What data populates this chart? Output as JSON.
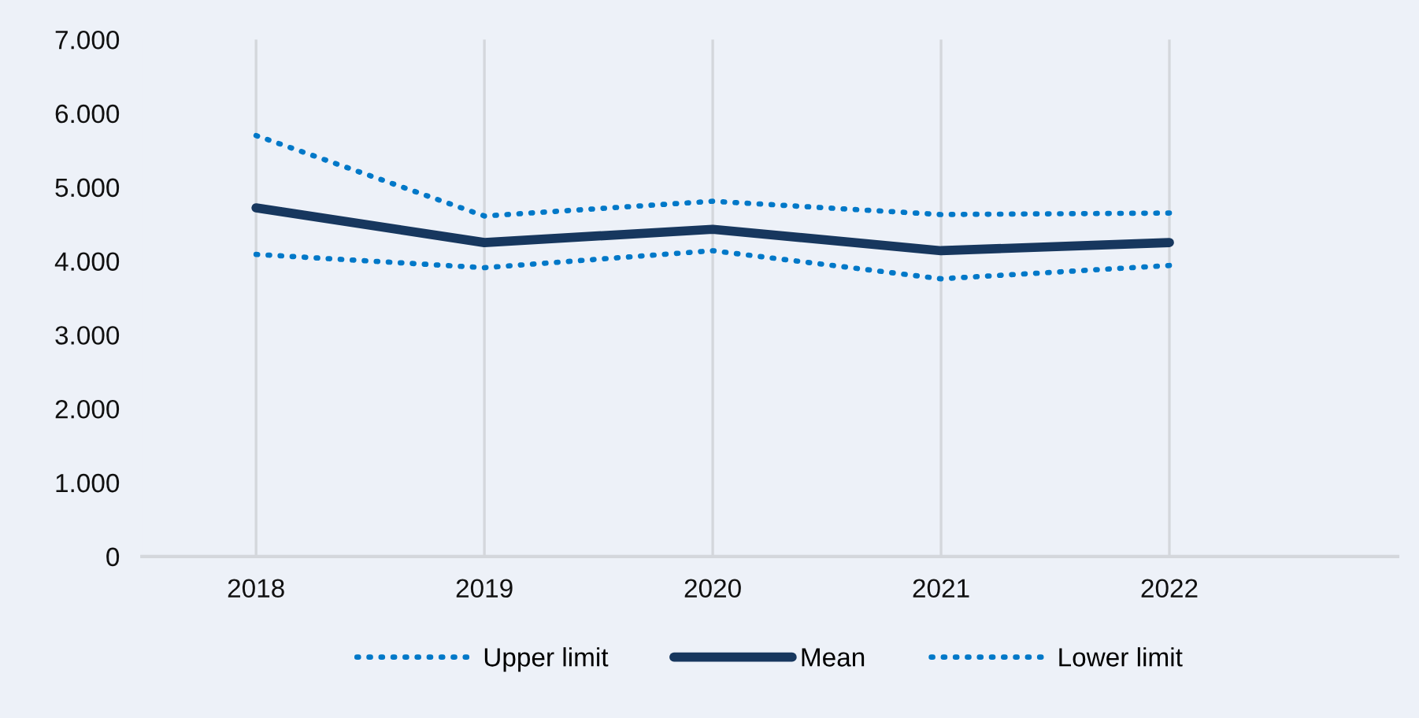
{
  "chart_data": {
    "type": "line",
    "categories": [
      "2018",
      "2019",
      "2020",
      "2021",
      "2022"
    ],
    "series": [
      {
        "name": "Upper limit",
        "color": "#0078c8",
        "line_style": "dotted",
        "values": [
          5700,
          4610,
          4810,
          4630,
          4650
        ]
      },
      {
        "name": "Mean",
        "color": "#17375e",
        "line_style": "solid",
        "values": [
          4720,
          4250,
          4430,
          4140,
          4250
        ]
      },
      {
        "name": "Lower limit",
        "color": "#0078c8",
        "line_style": "dotted",
        "values": [
          4090,
          3910,
          4140,
          3760,
          3940
        ]
      }
    ],
    "ylim": [
      0,
      7000
    ],
    "yticks": [
      {
        "value": 0,
        "label": "0"
      },
      {
        "value": 1000,
        "label": "1.000"
      },
      {
        "value": 2000,
        "label": "2.000"
      },
      {
        "value": 3000,
        "label": "3.000"
      },
      {
        "value": 4000,
        "label": "4.000"
      },
      {
        "value": 5000,
        "label": "5.000"
      },
      {
        "value": 6000,
        "label": "6.000"
      },
      {
        "value": 7000,
        "label": "7.000"
      }
    ],
    "grid": "x",
    "legend": "bottom",
    "marker": "none"
  }
}
